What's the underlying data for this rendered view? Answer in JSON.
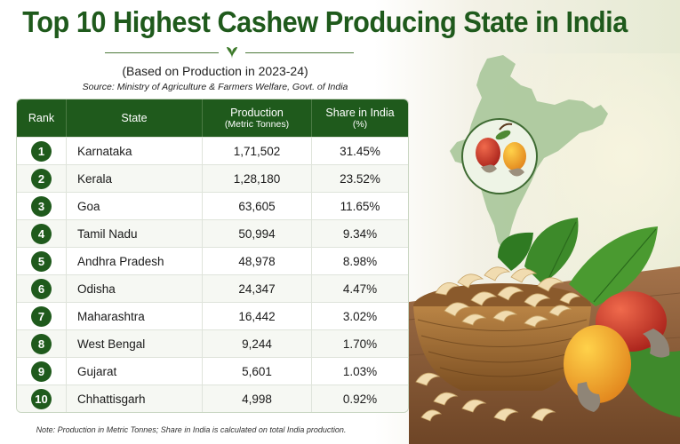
{
  "title": "Top 10 Highest Cashew Producing State in India",
  "subtitle": "(Based on Production in 2023-24)",
  "source": "Source: Ministry of Agriculture & Farmers Welfare, Govt. of India",
  "table": {
    "headers": {
      "rank": "Rank",
      "state": "State",
      "production": "Production",
      "production_unit": "(Metric Tonnes)",
      "share": "Share in India",
      "share_unit": "(%)"
    },
    "rows": [
      {
        "rank": "1",
        "state": "Karnataka",
        "production": "1,71,502",
        "share": "31.45%"
      },
      {
        "rank": "2",
        "state": "Kerala",
        "production": "1,28,180",
        "share": "23.52%"
      },
      {
        "rank": "3",
        "state": "Goa",
        "production": "63,605",
        "share": "11.65%"
      },
      {
        "rank": "4",
        "state": "Tamil Nadu",
        "production": "50,994",
        "share": "9.34%"
      },
      {
        "rank": "5",
        "state": "Andhra Pradesh",
        "production": "48,978",
        "share": "8.98%"
      },
      {
        "rank": "6",
        "state": "Odisha",
        "production": "24,347",
        "share": "4.47%"
      },
      {
        "rank": "7",
        "state": "Maharashtra",
        "production": "16,442",
        "share": "3.02%"
      },
      {
        "rank": "8",
        "state": "West Bengal",
        "production": "9,244",
        "share": "1.70%"
      },
      {
        "rank": "9",
        "state": "Gujarat",
        "production": "5,601",
        "share": "1.03%"
      },
      {
        "rank": "10",
        "state": "Chhattisgarh",
        "production": "4,998",
        "share": "0.92%"
      }
    ]
  },
  "note": "Note: Production in Metric Tonnes; Share in India is calculated on total India production.",
  "colors": {
    "primary_green": "#1f5a1c",
    "map_green": "#a9c79a",
    "cashew_apple_red": "#c8322a",
    "cashew_apple_yellow": "#f1a81f"
  }
}
